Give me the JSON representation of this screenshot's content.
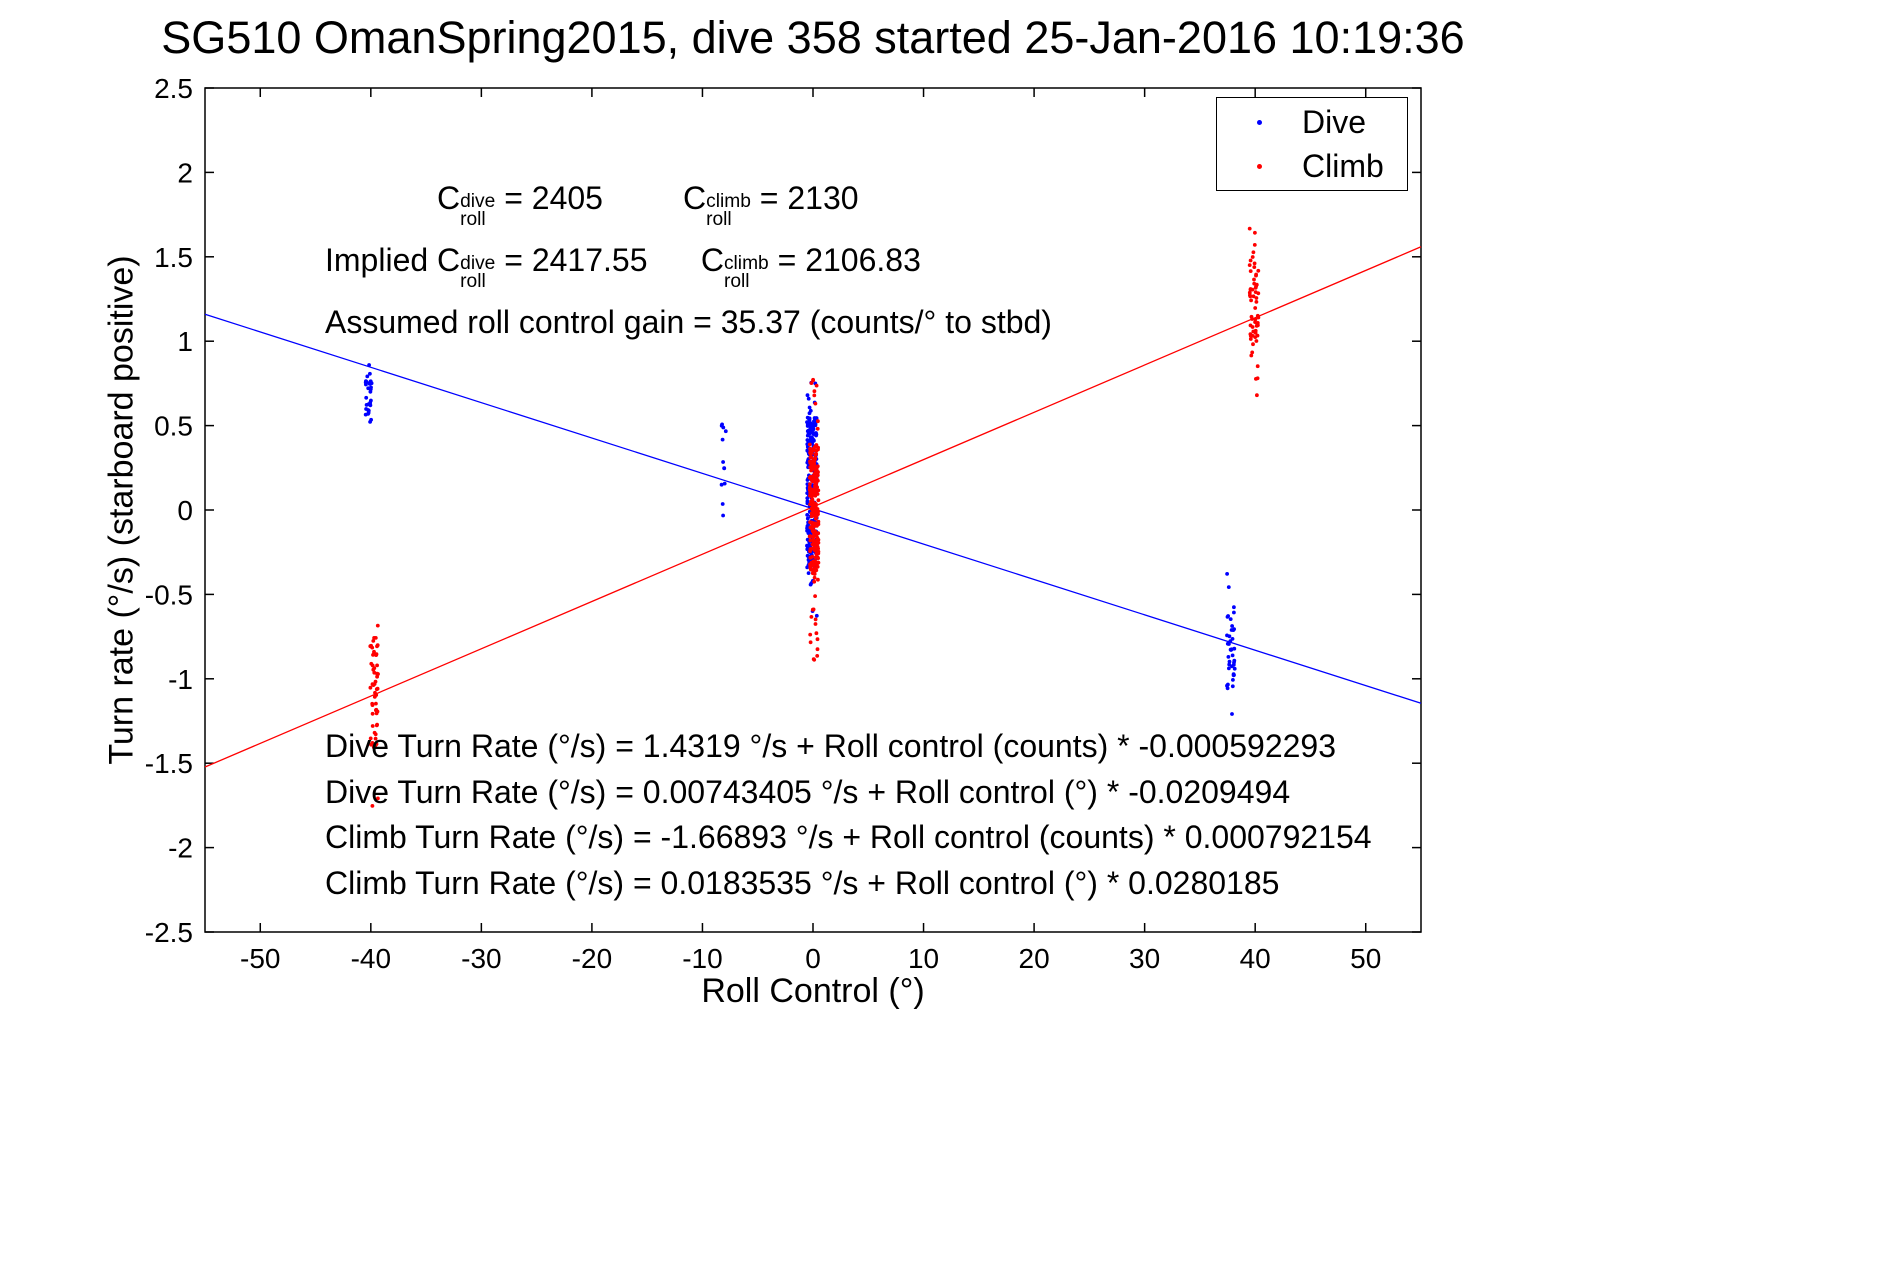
{
  "title": "SG510 OmanSpring2015, dive 358 started 25-Jan-2016 10:19:36",
  "legend": {
    "items": [
      {
        "label": "Dive",
        "color": "#0000ff"
      },
      {
        "label": "Climb",
        "color": "#ff0000"
      }
    ],
    "position": "top-right-inside"
  },
  "annotations": {
    "row1_parts": [
      {
        "t": "C",
        "sup": "dive",
        "sub": "roll"
      },
      {
        "t": " = 2405         "
      },
      {
        "t": "C",
        "sup": "climb",
        "sub": "roll"
      },
      {
        "t": " = 2130"
      }
    ],
    "row2_parts": [
      {
        "t": "Implied C",
        "sup": "dive",
        "sub": "roll"
      },
      {
        "t": " = 2417.55      "
      },
      {
        "t": "C",
        "sup": "climb",
        "sub": "roll"
      },
      {
        "t": " = 2106.83"
      }
    ],
    "gain_line": "Assumed roll control gain = 35.37 (counts/° to stbd)",
    "equations": [
      "Dive Turn Rate (°/s) = 1.4319 °/s + Roll control (counts) * -0.000592293",
      "Dive Turn Rate (°/s) = 0.00743405 °/s + Roll control (°) * -0.0209494",
      "Climb Turn Rate (°/s) = -1.66893 °/s + Roll control (counts) * 0.000792154",
      "Climb Turn Rate (°/s) = 0.0183535 °/s + Roll control (°) * 0.0280185"
    ]
  },
  "chart_data": {
    "type": "scatter",
    "title": "SG510 OmanSpring2015, dive 358 started 25-Jan-2016 10:19:36",
    "xlabel": "Roll Control (°)",
    "ylabel": "Turn rate (°/s) (starboard positive)",
    "xlim": [
      -55,
      55
    ],
    "ylim": [
      -2.5,
      2.5
    ],
    "xticks": [
      -50,
      -40,
      -30,
      -20,
      -10,
      0,
      10,
      20,
      30,
      40,
      50
    ],
    "yticks": [
      -2.5,
      -2,
      -1.5,
      -1,
      -0.5,
      0,
      0.5,
      1,
      1.5,
      2,
      2.5
    ],
    "grid": false,
    "marker": "dot",
    "series": [
      {
        "name": "Dive",
        "color": "#0000ff",
        "clusters": [
          {
            "x": -40.2,
            "x_jitter": 0.3,
            "y_min": 0.52,
            "y_max": 0.87,
            "dense": [
              0.56,
              0.82
            ],
            "dense_frac": 0.7,
            "n": 30
          },
          {
            "x": -8.1,
            "x_jitter": 0.25,
            "y_min": -0.08,
            "y_max": 0.56,
            "dense": [
              0.1,
              0.5
            ],
            "dense_frac": 0.6,
            "n": 12
          },
          {
            "x": -0.1,
            "x_jitter": 0.45,
            "y_min": -0.66,
            "y_max": 0.79,
            "dense": [
              -0.35,
              0.55
            ],
            "dense_frac": 0.82,
            "n": 280
          },
          {
            "x": 37.8,
            "x_jitter": 0.35,
            "y_min": -1.22,
            "y_max": -0.34,
            "dense": [
              -1.05,
              -0.62
            ],
            "dense_frac": 0.75,
            "n": 40
          }
        ]
      },
      {
        "name": "Climb",
        "color": "#ff0000",
        "clusters": [
          {
            "x": -39.7,
            "x_jitter": 0.35,
            "y_min": -1.8,
            "y_max": -0.53,
            "dense": [
              -1.4,
              -0.75
            ],
            "dense_frac": 0.75,
            "n": 55
          },
          {
            "x": 0.1,
            "x_jitter": 0.4,
            "y_min": -0.93,
            "y_max": 0.79,
            "dense": [
              -0.38,
              0.4
            ],
            "dense_frac": 0.82,
            "n": 280
          },
          {
            "x": 39.9,
            "x_jitter": 0.4,
            "y_min": 0.62,
            "y_max": 1.82,
            "dense": [
              0.92,
              1.5
            ],
            "dense_frac": 0.75,
            "n": 60
          }
        ]
      }
    ],
    "fit_lines": [
      {
        "name": "Dive fit",
        "color": "#0000ff",
        "intercept": 0.00743405,
        "slope": -0.0209494
      },
      {
        "name": "Climb fit",
        "color": "#ff0000",
        "intercept": 0.0183535,
        "slope": 0.0280185
      }
    ]
  }
}
